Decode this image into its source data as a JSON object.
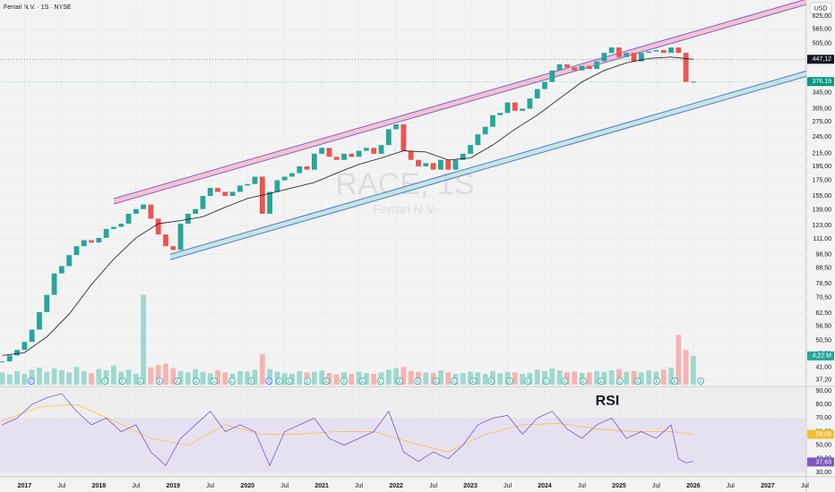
{
  "chart_data": {
    "type": "candle",
    "title": "Ferrari N.V. · 1S · NYSE",
    "currency": "USD",
    "watermark": "RACE, 1S",
    "watermark_sub": "Ferrari N.V.",
    "log_scale": true,
    "xlim": [
      2016.67,
      2027.52
    ],
    "ylim": [
      35.4,
      708
    ],
    "yticks": [
      {
        "value": 625,
        "label": "625,00"
      },
      {
        "value": 565,
        "label": "565,00"
      },
      {
        "value": 505,
        "label": "505,00"
      },
      {
        "value": 345,
        "label": "345,00"
      },
      {
        "value": 305,
        "label": "305,00"
      },
      {
        "value": 275,
        "label": "275,00"
      },
      {
        "value": 245,
        "label": "245,00"
      },
      {
        "value": 215,
        "label": "215,00"
      },
      {
        "value": 195,
        "label": "195,00"
      },
      {
        "value": 175,
        "label": "175,00"
      },
      {
        "value": 155,
        "label": "155,00"
      },
      {
        "value": 139,
        "label": "139,00"
      },
      {
        "value": 123,
        "label": "123,00"
      },
      {
        "value": 111,
        "label": "111,00"
      },
      {
        "value": 98.5,
        "label": "98,50"
      },
      {
        "value": 88.5,
        "label": "88,50"
      },
      {
        "value": 78.5,
        "label": "78,50"
      },
      {
        "value": 70.5,
        "label": "70,50"
      },
      {
        "value": 62.5,
        "label": "62,50"
      },
      {
        "value": 56.5,
        "label": "56,50"
      },
      {
        "value": 50.5,
        "label": "50,50"
      },
      {
        "value": 45.5,
        "label": "45,50"
      },
      {
        "value": 41,
        "label": "41,00"
      },
      {
        "value": 37.2,
        "label": "37,20"
      }
    ],
    "xticks": [
      2017,
      {
        "value": 2017.5,
        "label": "Jul"
      },
      2018,
      {
        "value": 2018.5,
        "label": "Jul"
      },
      2019,
      {
        "value": 2019.5,
        "label": "Jul"
      },
      2020,
      {
        "value": 2020.5,
        "label": "Jul"
      },
      2021,
      {
        "value": 2021.5,
        "label": "Jul"
      },
      2022,
      {
        "value": 2022.5,
        "label": "Jul"
      },
      2023,
      {
        "value": 2023.5,
        "label": "Jul"
      },
      2024,
      {
        "value": 2024.5,
        "label": "Jul"
      },
      2025,
      {
        "value": 2025.5,
        "label": "Jul"
      },
      2026,
      {
        "value": 2026.5,
        "label": "Jul"
      },
      2027,
      {
        "value": 2027.5,
        "label": "Jul"
      }
    ],
    "x": [
      2016.7,
      2016.8,
      2016.9,
      2017.0,
      2017.1,
      2017.2,
      2017.3,
      2017.4,
      2017.5,
      2017.6,
      2017.7,
      2017.8,
      2017.9,
      2018.0,
      2018.1,
      2018.2,
      2018.3,
      2018.4,
      2018.5,
      2018.6,
      2018.7,
      2018.8,
      2018.9,
      2019.0,
      2019.1,
      2019.2,
      2019.3,
      2019.4,
      2019.5,
      2019.6,
      2019.7,
      2019.8,
      2019.9,
      2020.0,
      2020.1,
      2020.2,
      2020.3,
      2020.4,
      2020.5,
      2020.6,
      2020.7,
      2020.8,
      2020.9,
      2021.0,
      2021.1,
      2021.2,
      2021.3,
      2021.4,
      2021.5,
      2021.6,
      2021.7,
      2021.8,
      2021.9,
      2022.0,
      2022.1,
      2022.2,
      2022.3,
      2022.4,
      2022.5,
      2022.6,
      2022.7,
      2022.8,
      2022.9,
      2023.0,
      2023.1,
      2023.2,
      2023.3,
      2023.4,
      2023.5,
      2023.6,
      2023.7,
      2023.8,
      2023.9,
      2024.0,
      2024.1,
      2024.2,
      2024.3,
      2024.4,
      2024.5,
      2024.6,
      2024.7,
      2024.8,
      2024.9,
      2025.0,
      2025.1,
      2025.2,
      2025.3,
      2025.4,
      2025.5,
      2025.6,
      2025.7,
      2025.8,
      2025.9,
      2026.0
    ],
    "values": [
      43,
      45,
      47,
      50,
      55,
      63,
      72,
      85,
      90,
      98,
      105,
      110,
      108,
      112,
      120,
      122,
      125,
      135,
      140,
      145,
      130,
      115,
      105,
      102,
      125,
      135,
      140,
      155,
      165,
      160,
      155,
      160,
      168,
      170,
      180,
      135,
      160,
      175,
      180,
      185,
      195,
      190,
      215,
      225,
      210,
      205,
      215,
      210,
      220,
      225,
      215,
      230,
      260,
      270,
      220,
      205,
      195,
      200,
      190,
      205,
      190,
      205,
      215,
      230,
      250,
      265,
      290,
      295,
      320,
      300,
      305,
      330,
      355,
      375,
      410,
      430,
      420,
      410,
      425,
      415,
      440,
      470,
      490,
      455,
      470,
      440,
      470,
      475,
      480,
      470,
      490,
      470,
      375,
      376
    ],
    "volume": [
      1.8,
      1.5,
      2.0,
      1.6,
      2.2,
      2.5,
      1.9,
      2.4,
      2.1,
      1.8,
      2.6,
      2.0,
      1.7,
      2.3,
      2.1,
      2.8,
      1.9,
      2.2,
      1.6,
      13.2,
      2.5,
      2.9,
      3.1,
      2.4,
      2.0,
      1.8,
      2.3,
      1.9,
      1.7,
      2.1,
      1.8,
      1.6,
      2.0,
      1.9,
      2.2,
      4.5,
      2.3,
      1.9,
      1.7,
      1.6,
      2.0,
      1.8,
      1.9,
      2.1,
      1.7,
      1.5,
      1.8,
      1.6,
      1.9,
      1.7,
      1.6,
      1.8,
      2.2,
      2.4,
      2.6,
      2.0,
      1.9,
      1.8,
      1.7,
      2.1,
      1.8,
      1.6,
      1.7,
      1.9,
      1.8,
      1.6,
      2.0,
      1.7,
      1.9,
      1.8,
      1.6,
      1.7,
      2.2,
      2.0,
      2.4,
      2.1,
      1.8,
      1.9,
      1.7,
      1.8,
      2.0,
      1.9,
      2.1,
      2.3,
      1.9,
      2.0,
      1.8,
      2.1,
      1.9,
      2.2,
      2.5,
      7.3,
      5.1,
      4.22
    ],
    "volume_lim": [
      0,
      13.8
    ],
    "ma": {
      "name": "MA",
      "color": "#131722",
      "x": [
        2016.7,
        2017.0,
        2017.3,
        2017.6,
        2017.9,
        2018.2,
        2018.5,
        2018.8,
        2019.1,
        2019.4,
        2019.7,
        2020.0,
        2020.3,
        2020.6,
        2020.9,
        2021.2,
        2021.5,
        2021.8,
        2022.1,
        2022.4,
        2022.7,
        2023.0,
        2023.3,
        2023.6,
        2023.9,
        2024.2,
        2024.5,
        2024.8,
        2025.1,
        2025.4,
        2025.7,
        2026.0
      ],
      "values": [
        45,
        46,
        52,
        62,
        78,
        95,
        112,
        125,
        128,
        132,
        142,
        152,
        158,
        165,
        172,
        185,
        198,
        208,
        220,
        218,
        205,
        208,
        230,
        260,
        290,
        330,
        375,
        410,
        435,
        450,
        455,
        447
      ]
    },
    "channels": [
      {
        "color": "#7b61d9",
        "fill": "#f4b6c2",
        "x": [
          2018.2,
          2027.52
        ],
        "values": [
          148.7,
          698
        ]
      },
      {
        "color": "#4f74e0",
        "fill": "#b9e4d6",
        "x": [
          2018.96,
          2027.52
        ],
        "values": [
          96.6,
          400
        ]
      }
    ],
    "price_tags": [
      {
        "value": 447.12,
        "label": "447,12",
        "color": "#131722"
      },
      {
        "value": 376.19,
        "label": "376,19",
        "color": "#089981"
      }
    ],
    "volume_tag": {
      "value": 4.22,
      "label": "4,22 M",
      "color": "#26a69a"
    },
    "events": [
      {
        "x": 2017.09,
        "label": "D"
      },
      {
        "x": 2018.08,
        "label": "E"
      },
      {
        "x": 2018.32,
        "label": "E"
      },
      {
        "x": 2018.56,
        "label": "E"
      },
      {
        "x": 2018.82,
        "label": "E"
      },
      {
        "x": 2019.06,
        "label": "E"
      },
      {
        "x": 2019.31,
        "label": "E"
      },
      {
        "x": 2019.55,
        "label": "E"
      },
      {
        "x": 2019.79,
        "label": "E"
      },
      {
        "x": 2020.05,
        "label": "E"
      },
      {
        "x": 2020.29,
        "label": "D"
      },
      {
        "x": 2020.43,
        "label": "E"
      },
      {
        "x": 2020.56,
        "label": "E"
      },
      {
        "x": 2020.81,
        "label": "E"
      },
      {
        "x": 2021.06,
        "label": "E"
      },
      {
        "x": 2021.3,
        "label": "E"
      },
      {
        "x": 2021.55,
        "label": "E"
      },
      {
        "x": 2021.79,
        "label": "E"
      },
      {
        "x": 2022.05,
        "label": "E"
      },
      {
        "x": 2022.29,
        "label": "E"
      },
      {
        "x": 2022.54,
        "label": "E"
      },
      {
        "x": 2022.78,
        "label": "E"
      },
      {
        "x": 2023.04,
        "label": "E"
      },
      {
        "x": 2023.28,
        "label": "E"
      },
      {
        "x": 2023.53,
        "label": "E"
      },
      {
        "x": 2023.77,
        "label": "E"
      },
      {
        "x": 2024.02,
        "label": "E"
      },
      {
        "x": 2024.27,
        "label": "E"
      },
      {
        "x": 2024.52,
        "label": "E"
      },
      {
        "x": 2024.76,
        "label": "E"
      },
      {
        "x": 2025.01,
        "label": "E"
      },
      {
        "x": 2025.25,
        "label": "E"
      },
      {
        "x": 2025.51,
        "label": "E"
      },
      {
        "x": 2025.75,
        "label": "E"
      },
      {
        "x": 2026.1,
        "label": "E"
      }
    ],
    "rsi": {
      "label": "RSI",
      "color": "#7e57c2",
      "ma_color": "#f0c030",
      "band": [
        30,
        70
      ],
      "ylim": [
        26.7,
        93.3
      ],
      "yticks": [
        {
          "value": 90,
          "label": "90,00"
        },
        {
          "value": 80,
          "label": "80,00"
        },
        {
          "value": 70,
          "label": "70,00"
        },
        {
          "value": 60,
          "label": "60,00"
        },
        {
          "value": 50,
          "label": "50,00"
        },
        {
          "value": 40,
          "label": "40,00"
        },
        {
          "value": 30,
          "label": "30,00"
        }
      ],
      "x": [
        2016.7,
        2016.9,
        2017.1,
        2017.3,
        2017.5,
        2017.7,
        2017.9,
        2018.1,
        2018.3,
        2018.5,
        2018.7,
        2018.9,
        2019.1,
        2019.3,
        2019.5,
        2019.7,
        2019.9,
        2020.1,
        2020.3,
        2020.5,
        2020.7,
        2020.9,
        2021.1,
        2021.3,
        2021.5,
        2021.7,
        2021.9,
        2022.1,
        2022.3,
        2022.5,
        2022.7,
        2022.9,
        2023.1,
        2023.3,
        2023.5,
        2023.7,
        2023.9,
        2024.1,
        2024.3,
        2024.5,
        2024.7,
        2024.9,
        2025.1,
        2025.3,
        2025.5,
        2025.7,
        2025.8,
        2025.9,
        2026.0
      ],
      "values": [
        65,
        70,
        80,
        85,
        88,
        75,
        65,
        70,
        60,
        65,
        45,
        35,
        55,
        65,
        75,
        60,
        65,
        60,
        35,
        60,
        65,
        70,
        55,
        50,
        55,
        60,
        75,
        45,
        38,
        45,
        40,
        50,
        65,
        70,
        72,
        58,
        70,
        75,
        62,
        55,
        65,
        70,
        55,
        60,
        55,
        65,
        40,
        37,
        38
      ],
      "ma_x": [
        2016.7,
        2017.2,
        2017.7,
        2018.2,
        2018.7,
        2019.2,
        2019.7,
        2020.2,
        2020.7,
        2021.2,
        2021.7,
        2022.2,
        2022.7,
        2023.2,
        2023.7,
        2024.2,
        2024.7,
        2025.2,
        2025.7,
        2026.0
      ],
      "ma_values": [
        68,
        78,
        80,
        68,
        55,
        50,
        65,
        58,
        58,
        60,
        60,
        52,
        45,
        58,
        65,
        66,
        62,
        60,
        60,
        58
      ],
      "tags": [
        {
          "value": 58.06,
          "label": "58,06",
          "color": "#f0c030"
        },
        {
          "value": 37.63,
          "label": "37,63",
          "color": "#7e57c2"
        }
      ]
    }
  }
}
